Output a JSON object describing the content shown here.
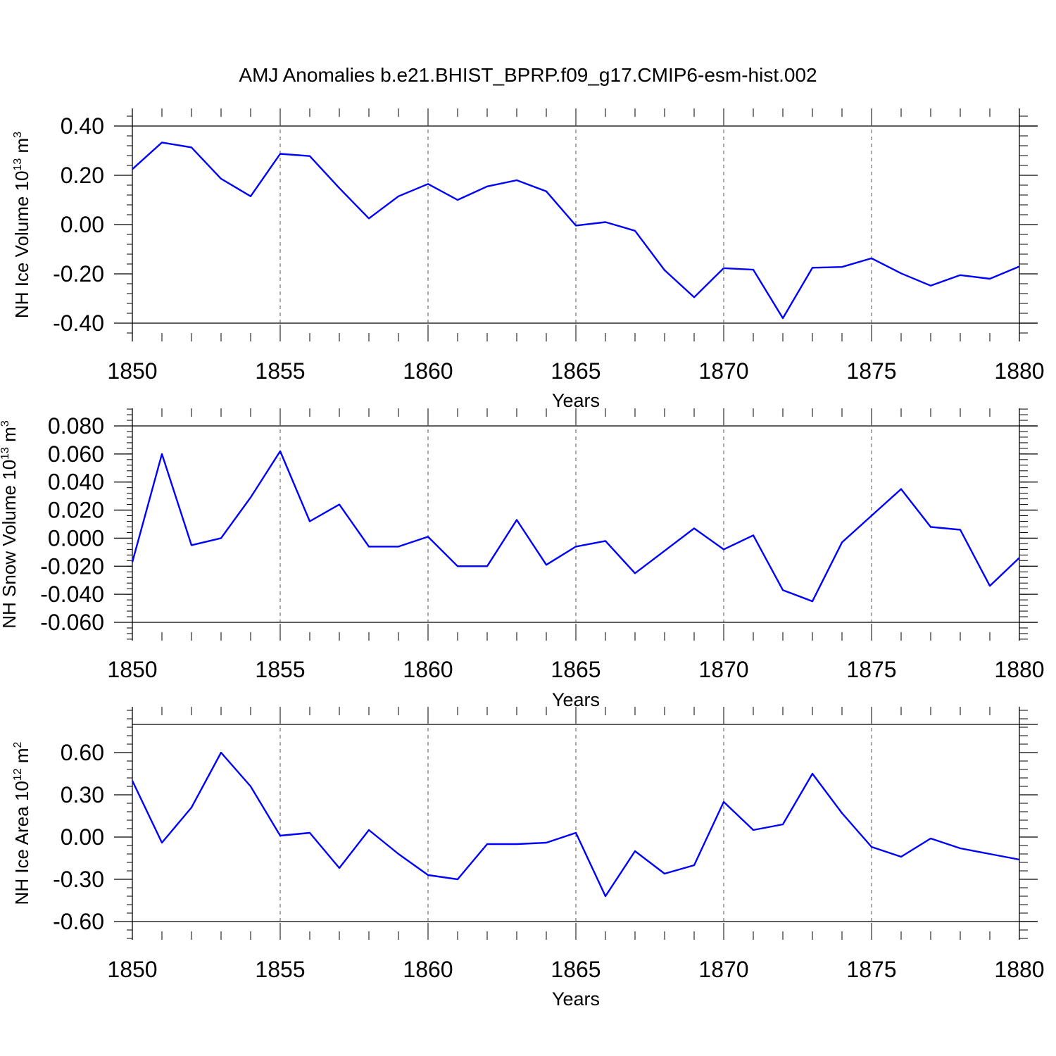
{
  "chart_data": [
    {
      "type": "line",
      "title": "AMJ Anomalies b.e21.BHIST_BPRP.f09_g17.CMIP6-esm-hist.002",
      "xlabel": "Years",
      "ylabel": {
        "base": "NH Ice Volume 10",
        "exp": "13",
        "unit": " m",
        "unit_exp": "3"
      },
      "x": [
        1850,
        1851,
        1852,
        1853,
        1854,
        1855,
        1856,
        1857,
        1858,
        1859,
        1860,
        1861,
        1862,
        1863,
        1864,
        1865,
        1866,
        1867,
        1868,
        1869,
        1870,
        1871,
        1872,
        1873,
        1874,
        1875,
        1876,
        1877,
        1878,
        1879,
        1880
      ],
      "values": [
        0.225,
        0.333,
        0.313,
        0.186,
        0.115,
        0.287,
        0.278,
        0.148,
        0.025,
        0.115,
        0.165,
        0.1,
        0.155,
        0.18,
        0.135,
        -0.004,
        0.01,
        -0.025,
        -0.185,
        -0.295,
        -0.177,
        -0.183,
        -0.38,
        -0.175,
        -0.172,
        -0.137,
        -0.198,
        -0.248,
        -0.205,
        -0.22,
        -0.17
      ],
      "xlim": [
        1850,
        1880
      ],
      "ylim": [
        -0.4,
        0.4
      ],
      "xticks": [
        "1850",
        "1855",
        "1860",
        "1865",
        "1870",
        "1875",
        "1880"
      ],
      "yticks": [
        "0.40",
        "0.20",
        "0.00",
        "-0.20",
        "-0.40"
      ],
      "line_color": "#0000ff",
      "grid": "vertical dashed at major x ticks"
    },
    {
      "type": "line",
      "xlabel": "Years",
      "ylabel": {
        "base": "NH Snow Volume 10",
        "exp": "13",
        "unit": " m",
        "unit_exp": "3"
      },
      "x": [
        1850,
        1851,
        1852,
        1853,
        1854,
        1855,
        1856,
        1857,
        1858,
        1859,
        1860,
        1861,
        1862,
        1863,
        1864,
        1865,
        1866,
        1867,
        1868,
        1869,
        1870,
        1871,
        1872,
        1873,
        1874,
        1875,
        1876,
        1877,
        1878,
        1879,
        1880
      ],
      "values": [
        -0.017,
        0.06,
        -0.005,
        0.0,
        0.029,
        0.062,
        0.012,
        0.024,
        -0.006,
        -0.006,
        0.001,
        -0.02,
        -0.02,
        0.013,
        -0.019,
        -0.006,
        -0.002,
        -0.025,
        -0.009,
        0.007,
        -0.008,
        0.002,
        -0.037,
        -0.045,
        -0.003,
        0.016,
        0.035,
        0.008,
        0.006,
        -0.034,
        -0.014
      ],
      "xlim": [
        1850,
        1880
      ],
      "ylim": [
        -0.06,
        0.08
      ],
      "xticks": [
        "1850",
        "1855",
        "1860",
        "1865",
        "1870",
        "1875",
        "1880"
      ],
      "yticks": [
        "0.080",
        "0.060",
        "0.040",
        "0.020",
        "0.000",
        "-0.020",
        "-0.040",
        "-0.060"
      ],
      "line_color": "#0000ff",
      "grid": "vertical dashed at major x ticks"
    },
    {
      "type": "line",
      "xlabel": "Years",
      "ylabel": {
        "base": "NH Ice Area 10",
        "exp": "12",
        "unit": " m",
        "unit_exp": "2"
      },
      "x": [
        1850,
        1851,
        1852,
        1853,
        1854,
        1855,
        1856,
        1857,
        1858,
        1859,
        1860,
        1861,
        1862,
        1863,
        1864,
        1865,
        1866,
        1867,
        1868,
        1869,
        1870,
        1871,
        1872,
        1873,
        1874,
        1875,
        1876,
        1877,
        1878,
        1879,
        1880
      ],
      "values": [
        0.4,
        -0.04,
        0.21,
        0.6,
        0.36,
        0.01,
        0.03,
        -0.22,
        0.05,
        -0.12,
        -0.27,
        -0.3,
        -0.05,
        -0.05,
        -0.04,
        0.03,
        -0.42,
        -0.1,
        -0.26,
        -0.2,
        0.25,
        0.05,
        0.09,
        0.45,
        0.17,
        -0.07,
        -0.14,
        -0.01,
        -0.08,
        -0.12,
        -0.16
      ],
      "xlim": [
        1850,
        1880
      ],
      "ylim": [
        -0.6,
        0.8
      ],
      "xticks": [
        "1850",
        "1855",
        "1860",
        "1865",
        "1870",
        "1875",
        "1880"
      ],
      "yticks": [
        "0.60",
        "0.30",
        "0.00",
        "-0.30",
        "-0.60"
      ],
      "line_color": "#0000ff",
      "grid": "vertical dashed at major x ticks"
    }
  ]
}
